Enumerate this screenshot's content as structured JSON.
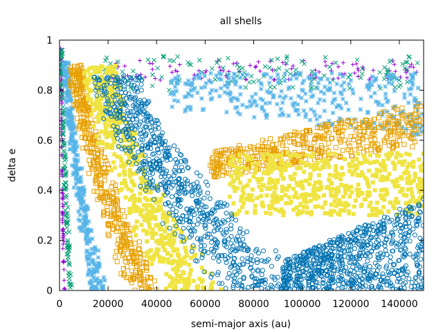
{
  "chart_data": {
    "type": "scatter",
    "title": "all shells",
    "xlabel": "semi-major axis (au)",
    "ylabel": "delta e",
    "xlim": [
      0,
      150000
    ],
    "ylim": [
      0,
      1
    ],
    "xticks": [
      "0",
      "20000",
      "40000",
      "60000",
      "80000",
      "100000",
      "120000",
      "140000"
    ],
    "yticks": [
      "0",
      "0.2",
      "0.4",
      "0.6",
      "0.8",
      "1"
    ],
    "grid": false,
    "legend": "none",
    "series": [
      {
        "marker": "plus",
        "color": "#9400d3",
        "regions": [
          {
            "shape": "curve",
            "a0": 1000,
            "a1": 2500,
            "emax": 0.97
          },
          {
            "shape": "band",
            "x0": 20000,
            "x1": 148000,
            "emin": 0.84,
            "emax": 0.92
          }
        ]
      },
      {
        "marker": "x",
        "color": "#009e73",
        "regions": [
          {
            "shape": "curve",
            "a0": 1500,
            "a1": 5500,
            "emax": 0.98
          },
          {
            "shape": "band",
            "x0": 15000,
            "x1": 148000,
            "emin": 0.8,
            "emax": 0.94
          }
        ]
      },
      {
        "marker": "star",
        "color": "#56b4e9",
        "regions": [
          {
            "shape": "curve",
            "a0": 4500,
            "a1": 20000,
            "emax": 0.92
          },
          {
            "shape": "upper",
            "x0": 45000,
            "x1": 150000,
            "emin_start": 0.72,
            "emin_end": 0.62,
            "emax": 0.87
          }
        ]
      },
      {
        "marker": "square",
        "color": "#e69f00",
        "regions": [
          {
            "shape": "curve",
            "a0": 12000,
            "a1": 44000,
            "emax": 0.9
          },
          {
            "shape": "vtop",
            "x0": 62000,
            "x1": 150000,
            "emin_start": 0.45,
            "emin_end": 0.58,
            "emax_start": 0.55,
            "emax_end": 0.76
          }
        ]
      },
      {
        "marker": "filled-square",
        "color": "#f0e442",
        "regions": [
          {
            "shape": "curve",
            "a0": 28000,
            "a1": 69000,
            "emax": 0.9
          },
          {
            "shape": "band",
            "x0": 70000,
            "x1": 150000,
            "emin": 0.3,
            "emax": 0.55
          }
        ]
      },
      {
        "marker": "circle",
        "color": "#0072b2",
        "regions": [
          {
            "shape": "curve",
            "a0": 40000,
            "a1": 108000,
            "emax": 0.86
          },
          {
            "shape": "rise",
            "x0": 92000,
            "x1": 150000,
            "emax_start": 0.12,
            "emax_end": 0.37
          }
        ]
      }
    ]
  }
}
